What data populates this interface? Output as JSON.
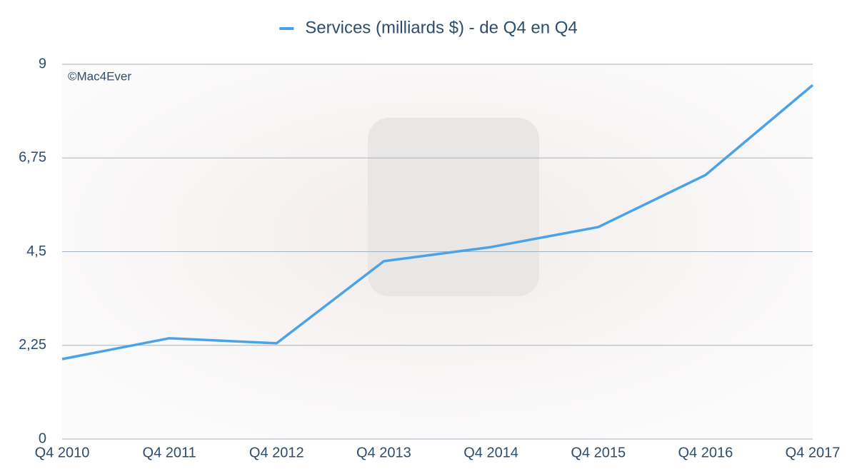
{
  "chart_data": {
    "type": "line",
    "series": [
      {
        "name": "Services (milliards $) - de Q4 en Q4",
        "color": "#4aa3e8",
        "values": [
          1.92,
          2.42,
          2.3,
          4.27,
          4.61,
          5.09,
          6.34,
          8.5
        ]
      }
    ],
    "categories": [
      "Q4 2010",
      "Q4 2011",
      "Q4 2012",
      "Q4 2013",
      "Q4 2014",
      "Q4 2015",
      "Q4 2016",
      "Q4 2017"
    ],
    "ylim": [
      0,
      9
    ],
    "yticks": [
      0,
      {
        "value": 2.25,
        "label": "2,25"
      },
      {
        "value": 4.5,
        "label": "4,5"
      },
      {
        "value": 6.75,
        "label": "6,75"
      },
      9
    ],
    "grid": true,
    "legend": "top",
    "annotation": "©Mac4Ever"
  }
}
